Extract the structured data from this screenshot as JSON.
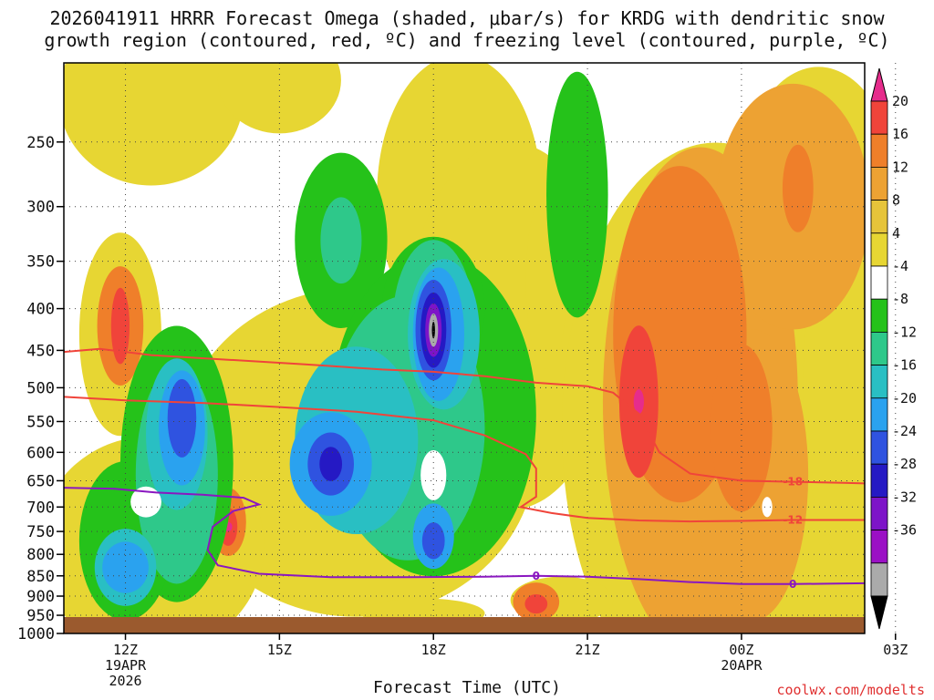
{
  "chart_data": {
    "type": "heatmap",
    "title_line1": "2026041911 HRRR Forecast Omega (shaded, μbar/s) for KRDG with dendritic snow",
    "title_line2": "growth region (contoured, red, ºC) and freezing level (contoured, purple, ºC)",
    "xlabel": "Forecast Time (UTC)",
    "credit": "coolwx.com/modelts",
    "y_axis": {
      "units": "hPa",
      "ticks": [
        250,
        300,
        350,
        400,
        450,
        500,
        550,
        600,
        650,
        700,
        750,
        800,
        850,
        900,
        950,
        1000
      ],
      "ylim": [
        1000,
        200
      ],
      "scale": "log-pressure"
    },
    "x_axis": {
      "xlim_hours": [
        10.8,
        26.4
      ],
      "ticks": [
        {
          "hour": 12,
          "label": "12Z",
          "sub1": "19APR",
          "sub2": "2026"
        },
        {
          "hour": 15,
          "label": "15Z",
          "sub1": "",
          "sub2": ""
        },
        {
          "hour": 18,
          "label": "18Z",
          "sub1": "",
          "sub2": ""
        },
        {
          "hour": 21,
          "label": "21Z",
          "sub1": "",
          "sub2": ""
        },
        {
          "hour": 24,
          "label": "00Z",
          "sub1": "20APR",
          "sub2": ""
        },
        {
          "hour": 27,
          "label": "03Z",
          "sub1": "",
          "sub2": ""
        }
      ]
    },
    "colorbar": {
      "labels": [
        "20",
        "16",
        "12",
        "8",
        "4",
        "-4",
        "-8",
        "-12",
        "-16",
        "-20",
        "-24",
        "-28",
        "-32",
        "-36"
      ],
      "colors": [
        "#e62c8c",
        "#f0443a",
        "#ef7f2a",
        "#eda233",
        "#e6c43a",
        "#e7d633",
        "#ffffff",
        "#25c21a",
        "#2ec88a",
        "#29bfc3",
        "#2aa2ef",
        "#2f53e0",
        "#2519c4",
        "#7d14c8",
        "#9b10c5",
        "#aaaaaa",
        "#000000"
      ]
    },
    "ground_color": "#9b5a2e",
    "series": [
      {
        "name": "dendritic-minus18",
        "label": "-18",
        "color": "#f0443a",
        "points": [
          [
            10.8,
            452
          ],
          [
            11.5,
            448
          ],
          [
            12.5,
            456
          ],
          [
            14,
            462
          ],
          [
            15.5,
            468
          ],
          [
            17,
            475
          ],
          [
            18,
            478
          ],
          [
            19,
            484
          ],
          [
            20,
            493
          ],
          [
            21,
            498
          ],
          [
            21.5,
            507
          ],
          [
            22,
            538
          ],
          [
            22.4,
            600
          ],
          [
            23,
            637
          ],
          [
            24,
            650
          ],
          [
            25,
            652
          ],
          [
            26,
            654
          ],
          [
            26.4,
            655
          ]
        ]
      },
      {
        "name": "dendritic-minus12",
        "label": "-12",
        "color": "#f0443a",
        "points": [
          [
            10.8,
            513
          ],
          [
            12,
            518
          ],
          [
            13.5,
            522
          ],
          [
            15,
            528
          ],
          [
            16.5,
            535
          ],
          [
            18,
            548
          ],
          [
            19,
            572
          ],
          [
            19.8,
            603
          ],
          [
            20,
            628
          ],
          [
            20,
            680
          ],
          [
            19.7,
            700
          ],
          [
            20.3,
            712
          ],
          [
            21,
            722
          ],
          [
            22,
            727
          ],
          [
            23,
            729
          ],
          [
            24,
            728
          ],
          [
            25,
            726
          ],
          [
            26.4,
            726
          ]
        ]
      },
      {
        "name": "freezing-level",
        "label": "0",
        "color": "#8a17c0",
        "points": [
          [
            10.8,
            663
          ],
          [
            11.8,
            665
          ],
          [
            12.6,
            672
          ],
          [
            13.5,
            676
          ],
          [
            14.3,
            682
          ],
          [
            14.6,
            695
          ],
          [
            14.1,
            708
          ],
          [
            13.7,
            740
          ],
          [
            13.6,
            790
          ],
          [
            13.8,
            825
          ],
          [
            14.6,
            845
          ],
          [
            16,
            853
          ],
          [
            17.5,
            853
          ],
          [
            19,
            852
          ],
          [
            20,
            850
          ],
          [
            21,
            852
          ],
          [
            22,
            858
          ],
          [
            23,
            865
          ],
          [
            24,
            870
          ],
          [
            25,
            870
          ],
          [
            26.4,
            868
          ]
        ]
      }
    ],
    "contour_labels": [
      {
        "text": "-18",
        "hour": 25.0,
        "p": 652,
        "color": "#f0443a"
      },
      {
        "text": "-12",
        "hour": 25.0,
        "p": 726,
        "color": "#f0443a"
      },
      {
        "text": "0",
        "hour": 20.0,
        "p": 850,
        "color": "#8a17c0"
      },
      {
        "text": "0",
        "hour": 25.0,
        "p": 870,
        "color": "#8a17c0"
      }
    ]
  }
}
